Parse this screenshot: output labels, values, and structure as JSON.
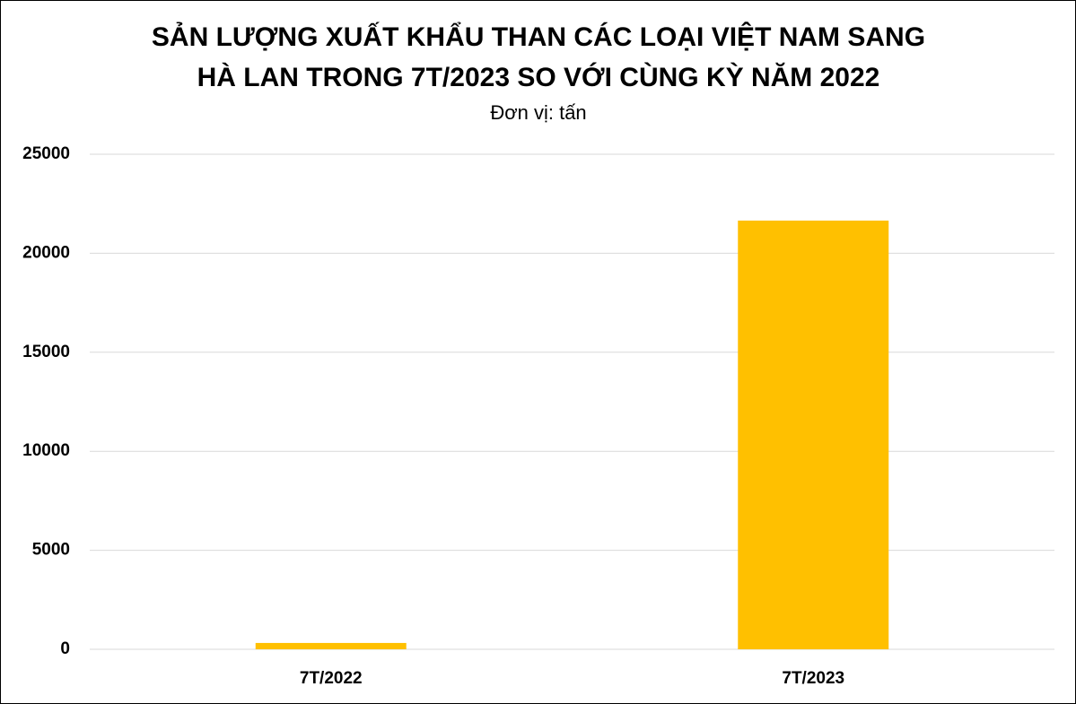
{
  "chart_data": {
    "type": "bar",
    "title": [
      "SẢN LƯỢNG XUẤT KHẨU THAN CÁC LOẠI VIỆT NAM SANG",
      "HÀ LAN TRONG 7T/2023 SO VỚI CÙNG KỲ NĂM 2022"
    ],
    "subtitle": "Đơn vị: tấn",
    "categories": [
      "7T/2022",
      "7T/2023"
    ],
    "values": [
      320,
      21650
    ],
    "color": "#ffc000",
    "ylim": [
      0,
      25000
    ],
    "yticks": [
      0,
      5000,
      10000,
      15000,
      20000,
      25000
    ],
    "grid": true
  }
}
